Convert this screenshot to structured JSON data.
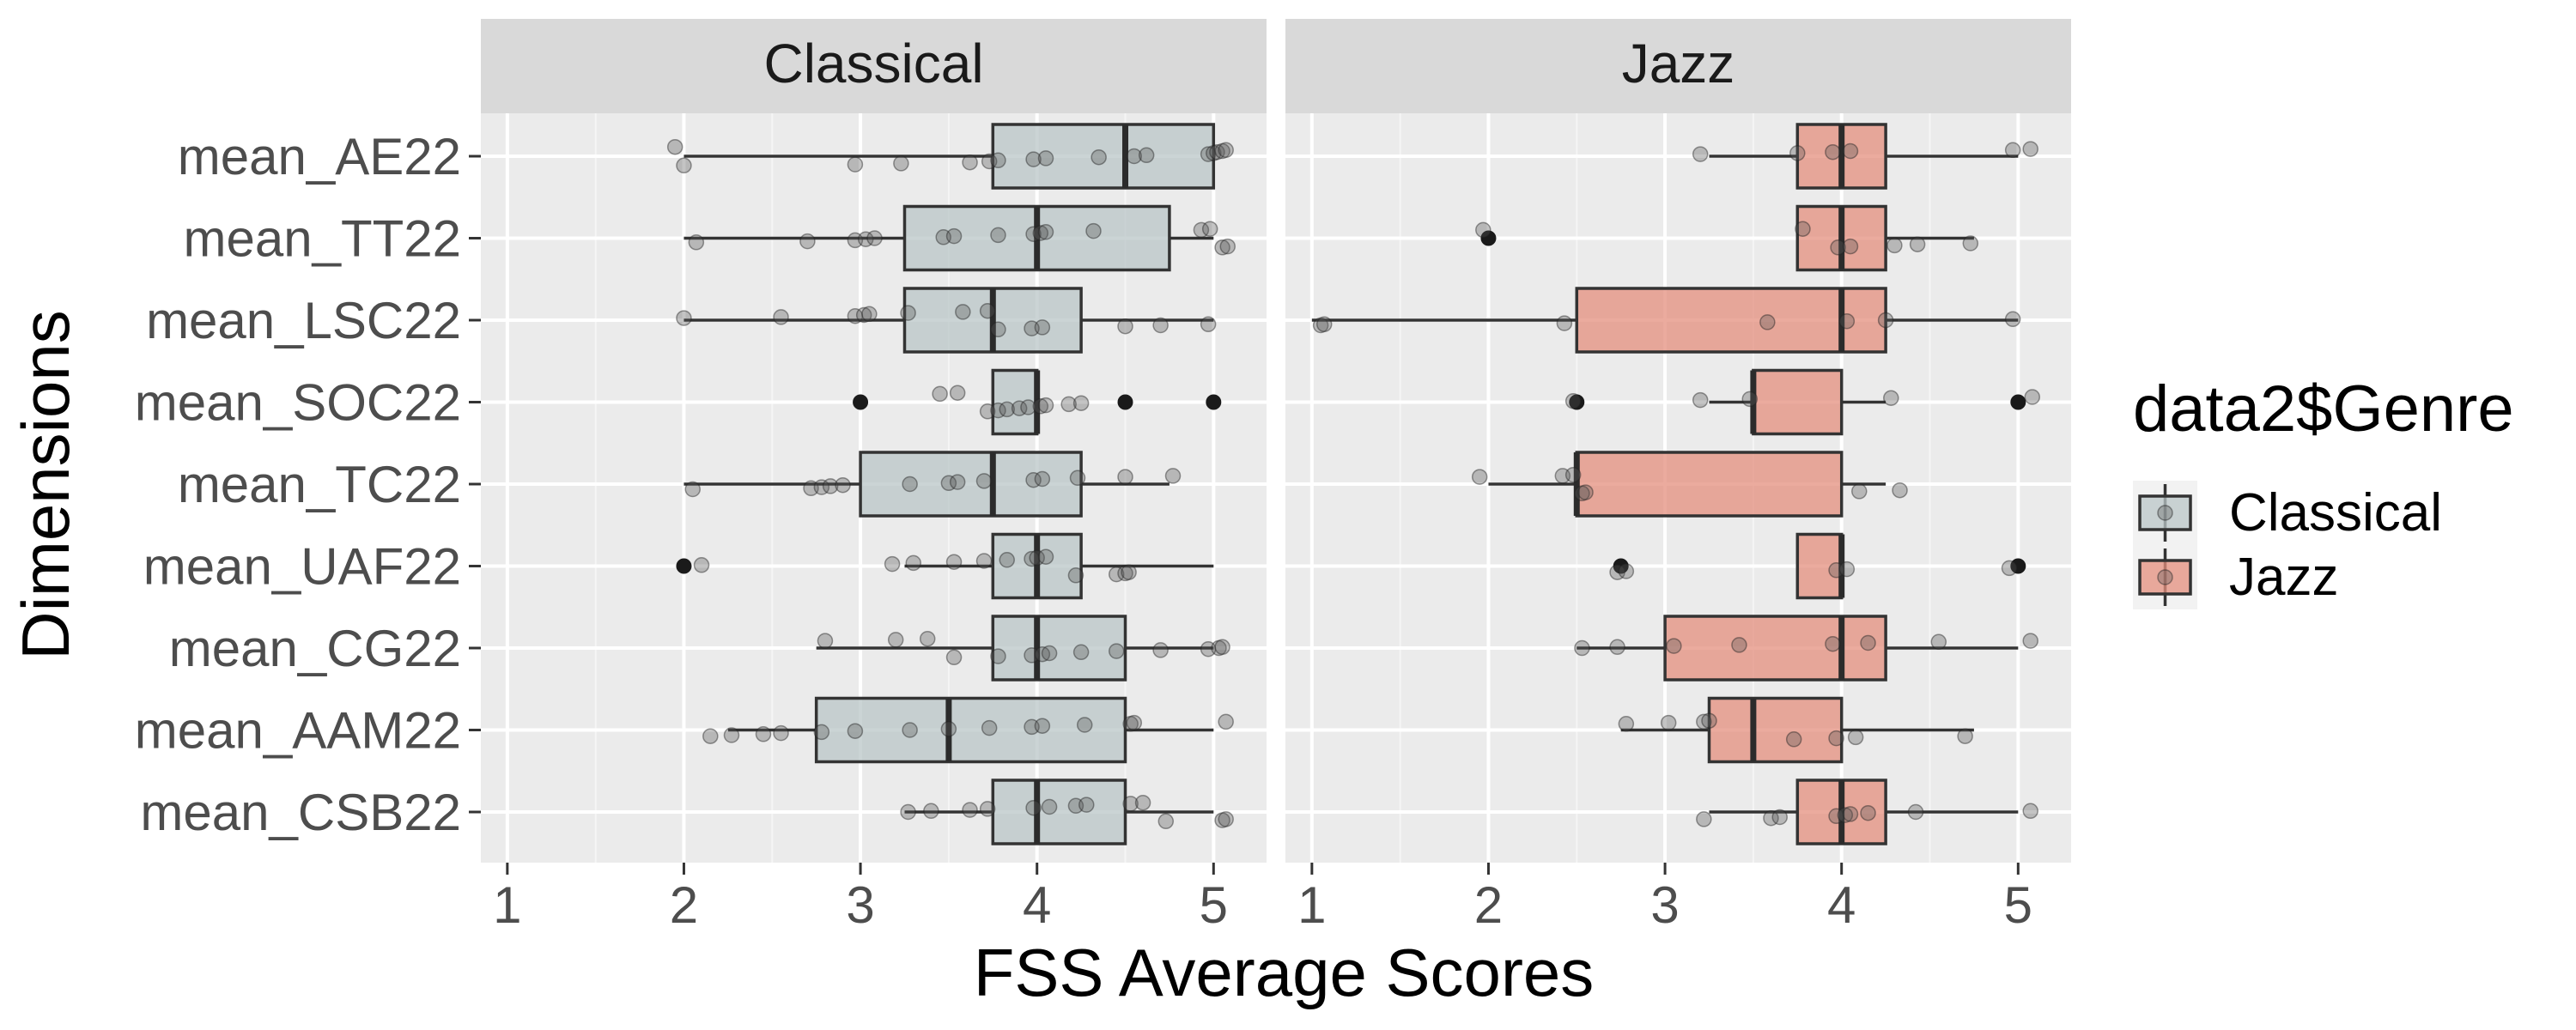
{
  "chart_data": {
    "type": "boxplot",
    "xlabel": "FSS Average Scores",
    "ylabel": "Dimensions",
    "xlim": [
      0.85,
      5.3
    ],
    "x_ticks": [
      1,
      2,
      3,
      4,
      5
    ],
    "grid": true,
    "legend": {
      "title": "data2$Genre",
      "position": "right",
      "entries": [
        {
          "name": "Classical",
          "color": "#b9c6c7"
        },
        {
          "name": "Jazz",
          "color": "#e48f7d"
        }
      ]
    },
    "categories": [
      "mean_AE22",
      "mean_TT22",
      "mean_LSC22",
      "mean_SOC22",
      "mean_TC22",
      "mean_UAF22",
      "mean_CG22",
      "mean_AAM22",
      "mean_CSB22"
    ],
    "panels": [
      {
        "name": "Classical",
        "color": "#b9c6c7",
        "boxes": [
          {
            "category": "mean_AE22",
            "whisker_low": 2.0,
            "q1": 3.75,
            "median": 4.5,
            "q3": 5.0,
            "whisker_high": 5.0,
            "outliers": []
          },
          {
            "category": "mean_TT22",
            "whisker_low": 2.0,
            "q1": 3.25,
            "median": 4.0,
            "q3": 4.75,
            "whisker_high": 5.0,
            "outliers": []
          },
          {
            "category": "mean_LSC22",
            "whisker_low": 2.0,
            "q1": 3.25,
            "median": 3.75,
            "q3": 4.25,
            "whisker_high": 5.0,
            "outliers": []
          },
          {
            "category": "mean_SOC22",
            "whisker_low": 3.75,
            "q1": 3.75,
            "median": 4.0,
            "q3": 4.0,
            "whisker_high": 4.0,
            "outliers": [
              3.0,
              4.5,
              5.0
            ]
          },
          {
            "category": "mean_TC22",
            "whisker_low": 2.0,
            "q1": 3.0,
            "median": 3.75,
            "q3": 4.25,
            "whisker_high": 4.75,
            "outliers": []
          },
          {
            "category": "mean_UAF22",
            "whisker_low": 3.25,
            "q1": 3.75,
            "median": 4.0,
            "q3": 4.25,
            "whisker_high": 5.0,
            "outliers": [
              2.0
            ]
          },
          {
            "category": "mean_CG22",
            "whisker_low": 2.75,
            "q1": 3.75,
            "median": 4.0,
            "q3": 4.5,
            "whisker_high": 5.0,
            "outliers": []
          },
          {
            "category": "mean_AAM22",
            "whisker_low": 2.25,
            "q1": 2.75,
            "median": 3.5,
            "q3": 4.5,
            "whisker_high": 5.0,
            "outliers": []
          },
          {
            "category": "mean_CSB22",
            "whisker_low": 3.25,
            "q1": 3.75,
            "median": 4.0,
            "q3": 4.5,
            "whisker_high": 5.0,
            "outliers": []
          }
        ],
        "jitter_points": [
          [
            1.95,
            2.0,
            2.97,
            3.23,
            3.62,
            3.73,
            3.78,
            3.98,
            4.05,
            4.35,
            4.55,
            4.62,
            4.97,
            5.0,
            5.02,
            5.05,
            5.07
          ],
          [
            2.07,
            2.7,
            2.97,
            3.03,
            3.08,
            3.47,
            3.53,
            3.78,
            3.98,
            4.02,
            4.05,
            4.32,
            4.93,
            4.98,
            5.05,
            5.08
          ],
          [
            2.0,
            2.55,
            2.97,
            3.02,
            3.05,
            3.27,
            3.58,
            3.72,
            3.78,
            3.97,
            4.03,
            4.5,
            4.7,
            4.97
          ],
          [
            3.45,
            3.55,
            3.72,
            3.78,
            3.83,
            3.9,
            3.95,
            4.02,
            4.05,
            4.18,
            4.25
          ],
          [
            2.05,
            2.72,
            2.78,
            2.83,
            2.9,
            3.28,
            3.5,
            3.55,
            3.7,
            3.98,
            4.03,
            4.23,
            4.5,
            4.77
          ],
          [
            2.1,
            3.18,
            3.3,
            3.53,
            3.7,
            3.83,
            3.97,
            4.0,
            4.05,
            4.22,
            4.45,
            4.5,
            4.52
          ],
          [
            2.8,
            3.2,
            3.38,
            3.53,
            3.78,
            3.97,
            4.03,
            4.07,
            4.25,
            4.45,
            4.7,
            4.97,
            5.03,
            5.05
          ],
          [
            2.15,
            2.27,
            2.45,
            2.55,
            2.78,
            2.97,
            3.28,
            3.5,
            3.73,
            3.97,
            4.03,
            4.27,
            4.53,
            4.55,
            5.07
          ],
          [
            3.27,
            3.4,
            3.62,
            3.72,
            3.98,
            4.07,
            4.22,
            4.28,
            4.53,
            4.6,
            4.73,
            5.05,
            5.07
          ]
        ]
      },
      {
        "name": "Jazz",
        "color": "#e48f7d",
        "boxes": [
          {
            "category": "mean_AE22",
            "whisker_low": 3.25,
            "q1": 3.75,
            "median": 4.0,
            "q3": 4.25,
            "whisker_high": 5.0,
            "outliers": []
          },
          {
            "category": "mean_TT22",
            "whisker_low": 3.75,
            "q1": 3.75,
            "median": 4.0,
            "q3": 4.25,
            "whisker_high": 4.75,
            "outliers": [
              2.0
            ]
          },
          {
            "category": "mean_LSC22",
            "whisker_low": 1.0,
            "q1": 2.5,
            "median": 4.0,
            "q3": 4.25,
            "whisker_high": 5.0,
            "outliers": []
          },
          {
            "category": "mean_SOC22",
            "whisker_low": 3.25,
            "q1": 3.5,
            "median": 3.5,
            "q3": 4.0,
            "whisker_high": 4.25,
            "outliers": [
              2.5,
              5.0
            ]
          },
          {
            "category": "mean_TC22",
            "whisker_low": 2.0,
            "q1": 2.5,
            "median": 2.5,
            "q3": 4.0,
            "whisker_high": 4.25,
            "outliers": []
          },
          {
            "category": "mean_UAF22",
            "whisker_low": 3.75,
            "q1": 3.75,
            "median": 4.0,
            "q3": 4.0,
            "whisker_high": 4.0,
            "outliers": [
              2.75,
              5.0
            ]
          },
          {
            "category": "mean_CG22",
            "whisker_low": 2.5,
            "q1": 3.0,
            "median": 4.0,
            "q3": 4.25,
            "whisker_high": 5.0,
            "outliers": []
          },
          {
            "category": "mean_AAM22",
            "whisker_low": 2.75,
            "q1": 3.25,
            "median": 3.5,
            "q3": 4.0,
            "whisker_high": 4.75,
            "outliers": []
          },
          {
            "category": "mean_CSB22",
            "whisker_low": 3.25,
            "q1": 3.75,
            "median": 4.0,
            "q3": 4.25,
            "whisker_high": 5.0,
            "outliers": []
          }
        ],
        "jitter_points": [
          [
            3.2,
            3.75,
            3.95,
            4.05,
            4.97,
            5.07
          ],
          [
            1.97,
            3.78,
            3.98,
            4.05,
            4.3,
            4.43,
            4.73
          ],
          [
            1.05,
            1.07,
            2.43,
            3.58,
            4.03,
            4.25,
            4.97
          ],
          [
            2.48,
            3.2,
            3.48,
            4.28,
            5.08
          ],
          [
            1.95,
            2.42,
            2.48,
            2.53,
            2.55,
            4.1,
            4.33
          ],
          [
            2.73,
            2.78,
            3.97,
            4.03,
            4.95
          ],
          [
            2.53,
            2.73,
            3.05,
            3.42,
            3.95,
            4.15,
            4.55,
            5.07
          ],
          [
            2.78,
            3.02,
            3.22,
            3.25,
            3.73,
            3.97,
            4.08,
            4.7
          ],
          [
            3.22,
            3.6,
            3.65,
            3.97,
            4.02,
            4.05,
            4.15,
            4.42,
            5.07
          ]
        ]
      }
    ]
  }
}
